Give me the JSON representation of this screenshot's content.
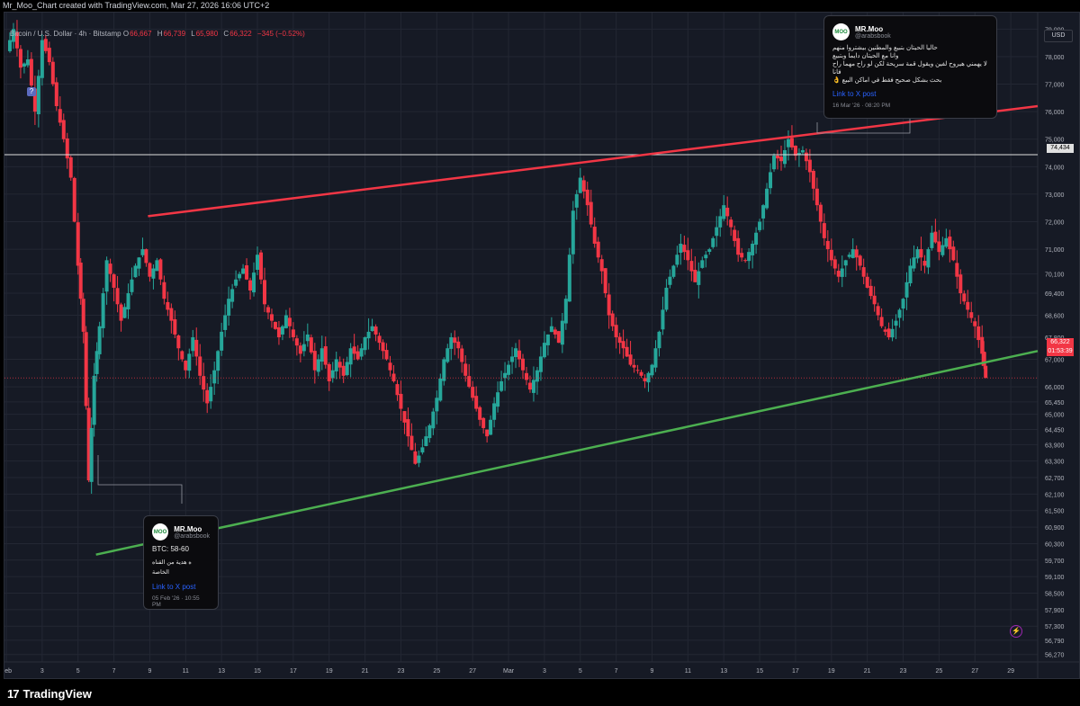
{
  "header": {
    "title": "Mr_Moo_Chart created with TradingView.com, Mar 27, 2026 16:06 UTC+2"
  },
  "legend": {
    "symbol": "Bitcoin / U.S. Dollar · 4h · Bitstamp",
    "open_label": "O",
    "open": "66,667",
    "high_label": "H",
    "high": "66,739",
    "low_label": "L",
    "low": "65,980",
    "close_label": "C",
    "close": "66,322",
    "change": "−345 (−0.52%)"
  },
  "currency_button": "USD",
  "marker_label": "?",
  "price_badges": {
    "level_line": "74,434",
    "last_price": "66,322",
    "countdown": "01:53:39"
  },
  "posts": [
    {
      "name": "MR.Moo",
      "handle": "@arabsbook",
      "avatar": "MOO",
      "lines": [
        "حاليا الحيتان بتبيع والمطنين بيشتروا منهم",
        "وانا مع الحيتان دايما وبتبيع",
        "لا يهمني هيروح لفين ويقول قمة سريحة لكن لو راح مهما راح فانا",
        "بحث بشكل صحيح فقط في اماكن البيع 👌"
      ],
      "link": "Link to X post",
      "date": "16 Mar '26 · 08:20 PM"
    },
    {
      "name": "MR.Moo",
      "handle": "@arabsbook",
      "avatar": "MOO",
      "headline": "BTC: 58-60",
      "lines": [
        "ه هدية من القناه الخاصة"
      ],
      "link": "Link to X post",
      "date": "05 Feb '26 · 10:55 PM"
    }
  ],
  "footer": {
    "brand": "TradingView",
    "brand_mark": "17"
  },
  "colors": {
    "up": "#26a69a",
    "down": "#f23645",
    "resistance": "#f23645",
    "support": "#4caf50",
    "level": "#e0e0e0",
    "background": "#161a25",
    "grid": "#232733"
  },
  "chart_data": {
    "type": "candlestick",
    "timeframe": "4h",
    "ylim": [
      56000,
      79600
    ],
    "y_ticks": [
      56270,
      56790,
      57300,
      57900,
      58500,
      59100,
      59700,
      60300,
      60900,
      61500,
      62100,
      62700,
      63300,
      63900,
      64450,
      65000,
      65450,
      66000,
      67000,
      67800,
      68600,
      69400,
      70100,
      71000,
      72000,
      73000,
      74000,
      75000,
      76000,
      77000,
      78000,
      79000
    ],
    "x_ticks": [
      {
        "label": "Feb",
        "day": 1
      },
      {
        "label": "3",
        "day": 3
      },
      {
        "label": "5",
        "day": 5
      },
      {
        "label": "7",
        "day": 7
      },
      {
        "label": "9",
        "day": 9
      },
      {
        "label": "11",
        "day": 11
      },
      {
        "label": "13",
        "day": 13
      },
      {
        "label": "15",
        "day": 15
      },
      {
        "label": "17",
        "day": 17
      },
      {
        "label": "19",
        "day": 19
      },
      {
        "label": "21",
        "day": 21
      },
      {
        "label": "23",
        "day": 23
      },
      {
        "label": "25",
        "day": 25
      },
      {
        "label": "27",
        "day": 27
      },
      {
        "label": "Mar",
        "day": 29
      },
      {
        "label": "3",
        "day": 31
      },
      {
        "label": "5",
        "day": 33
      },
      {
        "label": "7",
        "day": 35
      },
      {
        "label": "9",
        "day": 37
      },
      {
        "label": "11",
        "day": 39
      },
      {
        "label": "13",
        "day": 41
      },
      {
        "label": "15",
        "day": 43
      },
      {
        "label": "17",
        "day": 45
      },
      {
        "label": "19",
        "day": 47
      },
      {
        "label": "21",
        "day": 49
      },
      {
        "label": "23",
        "day": 51
      },
      {
        "label": "25",
        "day": 53
      },
      {
        "label": "27",
        "day": 55
      },
      {
        "label": "29",
        "day": 57
      }
    ],
    "price_path": [
      [
        1.0,
        78200
      ],
      [
        1.4,
        79000
      ],
      [
        1.8,
        77600
      ],
      [
        2.2,
        77900
      ],
      [
        2.6,
        76000
      ],
      [
        3.0,
        78600
      ],
      [
        3.4,
        77800
      ],
      [
        3.8,
        76200
      ],
      [
        4.2,
        75000
      ],
      [
        4.6,
        73600
      ],
      [
        5.0,
        70400
      ],
      [
        5.3,
        68000
      ],
      [
        5.6,
        62600
      ],
      [
        5.9,
        66400
      ],
      [
        6.2,
        68200
      ],
      [
        6.6,
        70600
      ],
      [
        7.0,
        69600
      ],
      [
        7.4,
        68400
      ],
      [
        7.8,
        69400
      ],
      [
        8.2,
        70400
      ],
      [
        8.6,
        71000
      ],
      [
        9.0,
        70000
      ],
      [
        9.4,
        70600
      ],
      [
        9.8,
        69200
      ],
      [
        10.2,
        68400
      ],
      [
        10.6,
        67400
      ],
      [
        11.0,
        66600
      ],
      [
        11.4,
        67800
      ],
      [
        11.8,
        66400
      ],
      [
        12.2,
        65400
      ],
      [
        12.6,
        66600
      ],
      [
        13.0,
        68000
      ],
      [
        13.4,
        69200
      ],
      [
        13.8,
        69900
      ],
      [
        14.2,
        70300
      ],
      [
        14.6,
        69500
      ],
      [
        15.0,
        70800
      ],
      [
        15.4,
        69000
      ],
      [
        15.8,
        68400
      ],
      [
        16.2,
        67800
      ],
      [
        16.6,
        68600
      ],
      [
        17.0,
        67800
      ],
      [
        17.4,
        67200
      ],
      [
        17.8,
        67900
      ],
      [
        18.2,
        66600
      ],
      [
        18.6,
        67400
      ],
      [
        19.0,
        66200
      ],
      [
        19.4,
        67000
      ],
      [
        19.8,
        66400
      ],
      [
        20.2,
        67400
      ],
      [
        20.6,
        67000
      ],
      [
        21.0,
        67800
      ],
      [
        21.4,
        68200
      ],
      [
        21.8,
        67600
      ],
      [
        22.2,
        67000
      ],
      [
        22.6,
        66200
      ],
      [
        23.0,
        65200
      ],
      [
        23.4,
        64200
      ],
      [
        23.8,
        63200
      ],
      [
        24.2,
        63800
      ],
      [
        24.6,
        64600
      ],
      [
        25.0,
        65600
      ],
      [
        25.4,
        67000
      ],
      [
        25.8,
        67800
      ],
      [
        26.2,
        67400
      ],
      [
        26.6,
        66400
      ],
      [
        27.0,
        65600
      ],
      [
        27.4,
        64800
      ],
      [
        27.8,
        64200
      ],
      [
        28.2,
        65400
      ],
      [
        28.6,
        66200
      ],
      [
        29.0,
        66800
      ],
      [
        29.4,
        67400
      ],
      [
        29.8,
        66600
      ],
      [
        30.2,
        65900
      ],
      [
        30.6,
        66600
      ],
      [
        31.0,
        67600
      ],
      [
        31.4,
        68200
      ],
      [
        31.8,
        67600
      ],
      [
        32.2,
        69200
      ],
      [
        32.6,
        72400
      ],
      [
        33.0,
        73600
      ],
      [
        33.4,
        72600
      ],
      [
        33.8,
        71200
      ],
      [
        34.2,
        70200
      ],
      [
        34.6,
        68600
      ],
      [
        35.0,
        67800
      ],
      [
        35.4,
        67400
      ],
      [
        35.8,
        66800
      ],
      [
        36.2,
        66600
      ],
      [
        36.6,
        66200
      ],
      [
        37.0,
        66800
      ],
      [
        37.4,
        68000
      ],
      [
        37.8,
        69600
      ],
      [
        38.2,
        70400
      ],
      [
        38.6,
        71200
      ],
      [
        39.0,
        70600
      ],
      [
        39.4,
        69800
      ],
      [
        39.8,
        70600
      ],
      [
        40.2,
        71000
      ],
      [
        40.6,
        71800
      ],
      [
        41.0,
        72600
      ],
      [
        41.4,
        71800
      ],
      [
        41.8,
        70800
      ],
      [
        42.2,
        70600
      ],
      [
        42.6,
        71200
      ],
      [
        43.0,
        72000
      ],
      [
        43.4,
        73200
      ],
      [
        43.8,
        74400
      ],
      [
        44.2,
        74200
      ],
      [
        44.6,
        75000
      ],
      [
        45.0,
        74400
      ],
      [
        45.4,
        74600
      ],
      [
        45.8,
        73800
      ],
      [
        46.2,
        72600
      ],
      [
        46.6,
        71400
      ],
      [
        47.0,
        70600
      ],
      [
        47.4,
        70000
      ],
      [
        47.8,
        70600
      ],
      [
        48.2,
        71000
      ],
      [
        48.6,
        70400
      ],
      [
        49.0,
        69600
      ],
      [
        49.4,
        69000
      ],
      [
        49.8,
        68200
      ],
      [
        50.2,
        67800
      ],
      [
        50.6,
        68400
      ],
      [
        51.0,
        69200
      ],
      [
        51.4,
        70400
      ],
      [
        51.8,
        71000
      ],
      [
        52.2,
        70400
      ],
      [
        52.6,
        71600
      ],
      [
        53.0,
        70900
      ],
      [
        53.4,
        71400
      ],
      [
        53.8,
        70600
      ],
      [
        54.2,
        69400
      ],
      [
        54.6,
        68800
      ],
      [
        55.0,
        68200
      ],
      [
        55.4,
        67200
      ],
      [
        55.6,
        66322
      ]
    ],
    "x_range_days": [
      0.9,
      58.5
    ],
    "resistance_line": [
      [
        8.9,
        72200
      ],
      [
        58.5,
        76200
      ]
    ],
    "support_line": [
      [
        6.0,
        59900
      ],
      [
        58.5,
        67300
      ]
    ],
    "level_line": 74434,
    "last_price": 66322
  }
}
